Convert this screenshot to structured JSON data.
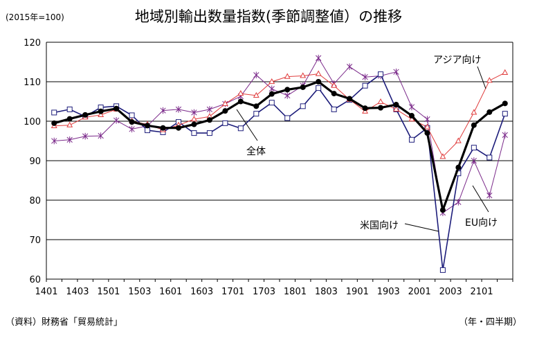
{
  "base_note": "(2015年=100)",
  "source": "（資料）財務省「貿易統計」",
  "unit_note": "（年・四半期）",
  "colors": {
    "all": "#000000",
    "asia": "#e03c3c",
    "us": "#1c1c7a",
    "eu": "#7b2a8a",
    "grid": "#000000"
  },
  "chart_data": {
    "type": "line",
    "title": "地域別輸出数量指数(季節調整値）の推移",
    "xlabel": "",
    "ylabel": "",
    "ylim": [
      60,
      120
    ],
    "yticks": [
      60,
      70,
      80,
      90,
      100,
      110,
      120
    ],
    "grid": true,
    "x": [
      "1401",
      "1402",
      "1403",
      "1404",
      "1501",
      "1502",
      "1503",
      "1504",
      "1601",
      "1602",
      "1603",
      "1604",
      "1701",
      "1702",
      "1703",
      "1704",
      "1801",
      "1802",
      "1803",
      "1804",
      "1901",
      "1902",
      "1903",
      "1904",
      "2001",
      "2002",
      "2003",
      "2004",
      "2101",
      "2102"
    ],
    "xtick_labels": [
      "1401",
      "1403",
      "1501",
      "1503",
      "1601",
      "1603",
      "1701",
      "1703",
      "1801",
      "1803",
      "1901",
      "1903",
      "2001",
      "2003",
      "2101"
    ],
    "series": [
      {
        "key": "all",
        "name": "全体",
        "marker": "circle",
        "values": [
          99.5,
          100.6,
          101.6,
          102.5,
          103.2,
          99.8,
          98.9,
          98.3,
          98.3,
          99.2,
          100.3,
          102.6,
          105.0,
          103.8,
          106.9,
          108.0,
          108.6,
          110.0,
          107.0,
          105.7,
          103.3,
          103.4,
          104.2,
          101.4,
          97.0,
          77.5,
          88.3,
          99.0,
          102.3,
          104.5
        ]
      },
      {
        "key": "asia",
        "name": "アジア向け",
        "marker": "triangle",
        "values": [
          98.8,
          99.0,
          101.0,
          101.6,
          103.0,
          100.0,
          99.2,
          97.8,
          99.0,
          100.5,
          101.2,
          104.4,
          107.0,
          106.5,
          110.0,
          111.3,
          111.5,
          112.0,
          109.0,
          105.5,
          102.5,
          104.9,
          103.0,
          100.5,
          98.5,
          91.0,
          95.0,
          102.2,
          110.3,
          112.3
        ]
      },
      {
        "key": "us",
        "name": "米国向け",
        "marker": "square",
        "values": [
          102.2,
          103.0,
          101.2,
          103.5,
          103.8,
          101.5,
          97.7,
          97.2,
          99.8,
          97.0,
          97.0,
          99.5,
          98.2,
          101.9,
          104.7,
          100.8,
          103.8,
          108.4,
          103.0,
          105.4,
          109.0,
          111.9,
          103.0,
          95.3,
          98.3,
          62.3,
          86.8,
          93.3,
          90.8,
          101.9
        ]
      },
      {
        "key": "eu",
        "name": "EU向け",
        "marker": "asterisk",
        "values": [
          95.0,
          95.3,
          96.2,
          96.3,
          100.2,
          98.0,
          98.8,
          102.7,
          103.0,
          102.2,
          103.0,
          104.4,
          106.3,
          111.7,
          108.2,
          106.5,
          109.0,
          116.0,
          109.5,
          113.8,
          111.2,
          111.5,
          112.5,
          103.6,
          100.5,
          76.8,
          79.5,
          90.0,
          81.2,
          96.5
        ]
      }
    ],
    "annotations": {
      "asia": "アジア向け",
      "all": "全体",
      "us": "米国向け",
      "eu": "EU向け"
    }
  }
}
